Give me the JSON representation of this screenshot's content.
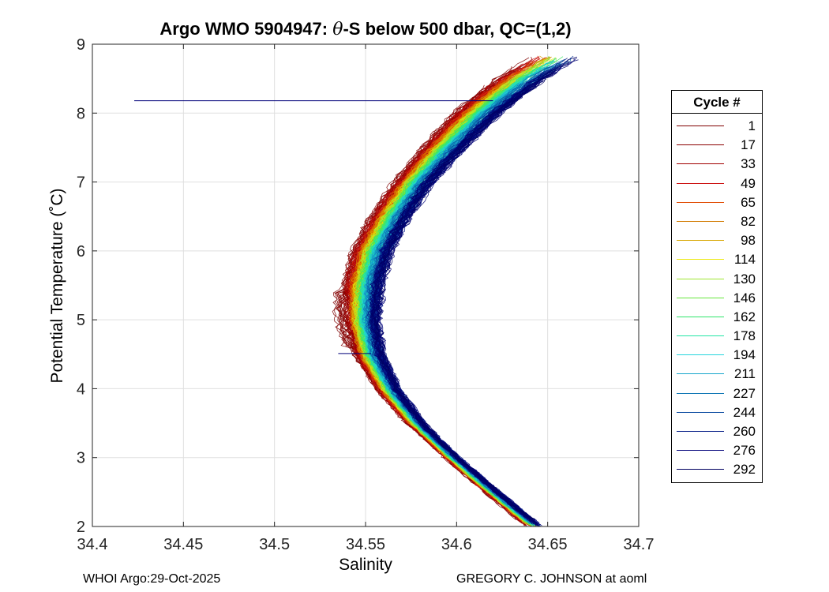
{
  "chart_data": {
    "type": "line",
    "title": "Argo WMO 5904947: θ-S below 500 dbar,  QC=(1,2)",
    "title_parts": {
      "prefix": "Argo WMO 5904947: ",
      "symbol": "θ",
      "suffix": "-S below 500 dbar,  QC=(1,2)"
    },
    "xlabel": "Salinity",
    "ylabel": "Potential Temperature (˚C)",
    "xlim": [
      34.4,
      34.7
    ],
    "ylim": [
      2,
      9
    ],
    "xticks": [
      34.4,
      34.45,
      34.5,
      34.55,
      34.6,
      34.65,
      34.7
    ],
    "xtick_labels": [
      "34.4",
      "34.45",
      "34.5",
      "34.55",
      "34.6",
      "34.65",
      "34.7"
    ],
    "yticks": [
      2,
      3,
      4,
      5,
      6,
      7,
      8,
      9
    ],
    "ytick_labels": [
      "2",
      "3",
      "4",
      "5",
      "6",
      "7",
      "8",
      "9"
    ],
    "grid": true,
    "legend_position": "outside-right",
    "legend_title": "Cycle #",
    "legend_entries": [
      "1",
      "17",
      "33",
      "49",
      "65",
      "82",
      "98",
      "114",
      "130",
      "146",
      "162",
      "178",
      "194",
      "211",
      "227",
      "244",
      "260",
      "276",
      "292"
    ],
    "legend_colors": [
      "#7f0000",
      "#8a0000",
      "#a00000",
      "#cc1010",
      "#e14a00",
      "#d27a00",
      "#d8a600",
      "#ece80a",
      "#9ee632",
      "#66e63c",
      "#2ee66a",
      "#22e6a4",
      "#24d4dc",
      "#16a6cc",
      "#0e76b4",
      "#0a4aa0",
      "#061e88",
      "#00007a",
      "#000060"
    ],
    "series_note": "one theta-S profile per cycle, 1 to 300",
    "reference_profile": {
      "theta": [
        2.0,
        2.5,
        3.0,
        3.5,
        4.0,
        4.5,
        5.0,
        5.5,
        6.0,
        6.5,
        7.0,
        7.5,
        8.0,
        8.5,
        8.8
      ],
      "salinity": [
        34.643,
        34.62,
        34.598,
        34.578,
        34.563,
        34.553,
        34.549,
        34.55,
        34.555,
        34.565,
        34.578,
        34.594,
        34.612,
        34.635,
        34.653
      ]
    },
    "annotations": [
      {
        "kind": "spike",
        "theta": 8.18,
        "salinity_range": [
          34.423,
          34.62
        ]
      },
      {
        "kind": "spike",
        "theta": 4.51,
        "salinity_range": [
          34.535,
          34.553
        ]
      }
    ]
  },
  "footer": {
    "left": "WHOI Argo:29-Oct-2025",
    "right": "GREGORY C. JOHNSON at aoml"
  }
}
